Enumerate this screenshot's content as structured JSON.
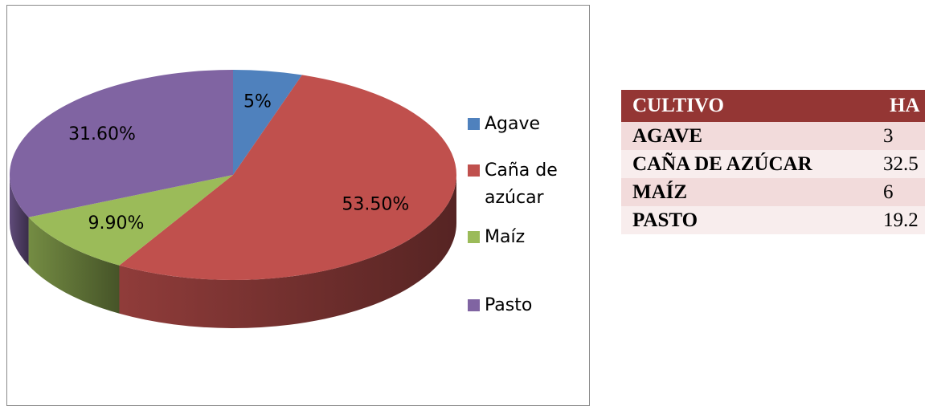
{
  "chart_data": {
    "type": "pie",
    "categories": [
      "Agave",
      "Caña de azúcar",
      "Maíz",
      "Pasto"
    ],
    "values": [
      5,
      53.5,
      9.9,
      31.6
    ],
    "value_labels": [
      "5%",
      "53.50%",
      "9.90%",
      "31.60%"
    ],
    "colors": [
      "#4f81bd",
      "#c0504d",
      "#9bbb59",
      "#8064a2"
    ],
    "legend": "right"
  },
  "table": {
    "header": [
      "CULTIVO",
      "HA"
    ],
    "rows": [
      [
        "AGAVE",
        3
      ],
      [
        "CAÑA DE AZÚCAR",
        32.5
      ],
      [
        "MAÍZ",
        6
      ],
      [
        "PASTO",
        19.2
      ]
    ]
  }
}
